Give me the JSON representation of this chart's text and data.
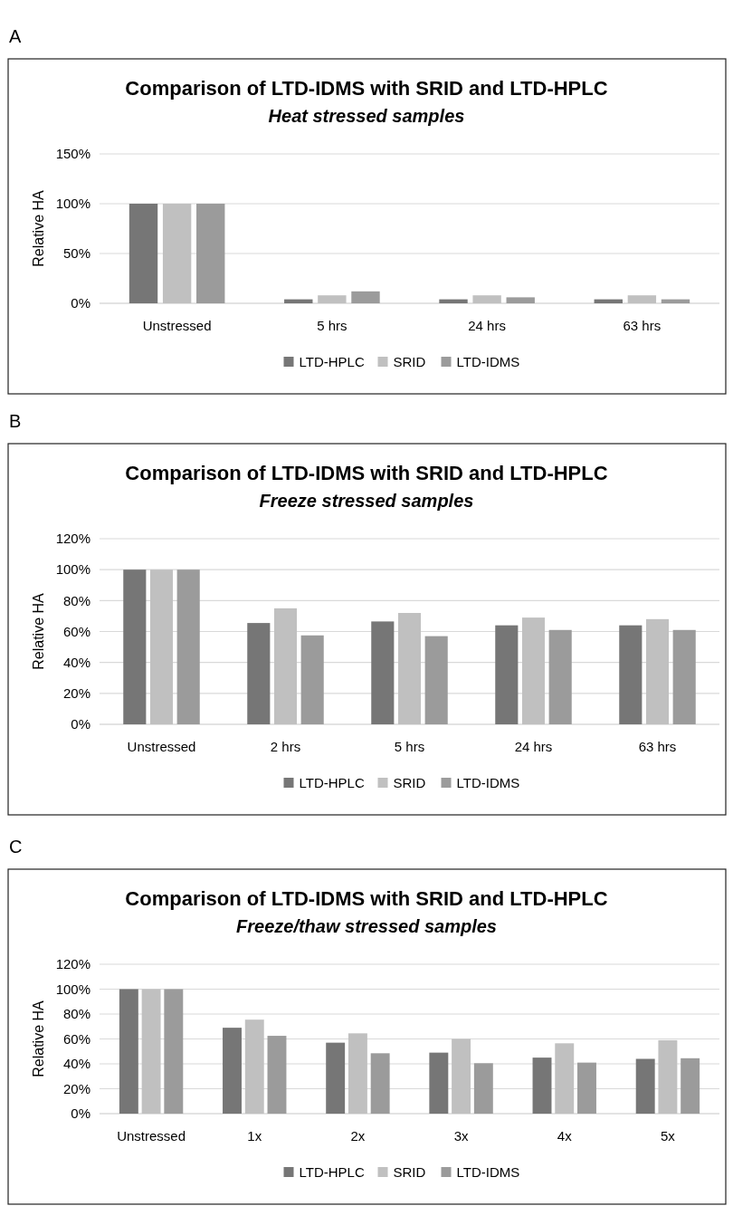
{
  "chart_data": [
    {
      "type": "bar",
      "title": "Comparison of LTD-IDMS with SRID and LTD-HPLC",
      "subtitle": "Heat stressed samples",
      "ylabel": "Relative HA",
      "annotations": [
        "A"
      ],
      "categories": [
        "Unstressed",
        "5 hrs",
        "24 hrs",
        "63 hrs"
      ],
      "series": [
        {
          "name": "LTD-HPLC",
          "color": "#767676",
          "values": [
            100,
            4,
            4,
            4
          ]
        },
        {
          "name": "SRID",
          "color": "#c0c0c0",
          "values": [
            100,
            8,
            8,
            8
          ]
        },
        {
          "name": "LTD-IDMS",
          "color": "#9b9b9b",
          "values": [
            100,
            12,
            6,
            4
          ]
        }
      ],
      "ylim": [
        0,
        150
      ],
      "yticks": [
        {
          "value": 0,
          "label": "0%"
        },
        {
          "value": 50,
          "label": "50%"
        },
        {
          "value": 100,
          "label": "100%"
        },
        {
          "value": 150,
          "label": "150%"
        }
      ],
      "grid": "y",
      "legend": "bottom"
    },
    {
      "type": "bar",
      "title": "Comparison of LTD-IDMS with SRID and LTD-HPLC",
      "subtitle": "Freeze stressed samples",
      "ylabel": "Relative HA",
      "annotations": [
        "B"
      ],
      "categories": [
        "Unstressed",
        "2 hrs",
        "5 hrs",
        "24 hrs",
        "63 hrs"
      ],
      "series": [
        {
          "name": "LTD-HPLC",
          "color": "#767676",
          "values": [
            100,
            65.5,
            66.5,
            64,
            64
          ]
        },
        {
          "name": "SRID",
          "color": "#c0c0c0",
          "values": [
            100,
            75,
            72,
            69,
            68
          ]
        },
        {
          "name": "LTD-IDMS",
          "color": "#9b9b9b",
          "values": [
            100,
            57.5,
            57,
            61,
            61
          ]
        }
      ],
      "ylim": [
        0,
        120
      ],
      "yticks": [
        {
          "value": 0,
          "label": "0%"
        },
        {
          "value": 20,
          "label": "20%"
        },
        {
          "value": 40,
          "label": "40%"
        },
        {
          "value": 60,
          "label": "60%"
        },
        {
          "value": 80,
          "label": "80%"
        },
        {
          "value": 100,
          "label": "100%"
        },
        {
          "value": 120,
          "label": "120%"
        }
      ],
      "grid": "y",
      "legend": "bottom"
    },
    {
      "type": "bar",
      "title": "Comparison of LTD-IDMS with SRID and LTD-HPLC",
      "subtitle": "Freeze/thaw stressed samples",
      "ylabel": "Relative HA",
      "annotations": [
        "C"
      ],
      "categories": [
        "Unstressed",
        "1x",
        "2x",
        "3x",
        "4x",
        "5x"
      ],
      "series": [
        {
          "name": "LTD-HPLC",
          "color": "#767676",
          "values": [
            100,
            69,
            57,
            49,
            45,
            44
          ]
        },
        {
          "name": "SRID",
          "color": "#c0c0c0",
          "values": [
            100,
            75.5,
            64.5,
            60,
            56.5,
            59
          ]
        },
        {
          "name": "LTD-IDMS",
          "color": "#9b9b9b",
          "values": [
            100,
            62.5,
            48.5,
            40.5,
            41,
            44.5
          ]
        }
      ],
      "ylim": [
        0,
        120
      ],
      "yticks": [
        {
          "value": 0,
          "label": "0%"
        },
        {
          "value": 20,
          "label": "20%"
        },
        {
          "value": 40,
          "label": "40%"
        },
        {
          "value": 60,
          "label": "60%"
        },
        {
          "value": 80,
          "label": "80%"
        },
        {
          "value": 100,
          "label": "100%"
        },
        {
          "value": 120,
          "label": "120%"
        }
      ],
      "grid": "y",
      "legend": "bottom"
    }
  ]
}
